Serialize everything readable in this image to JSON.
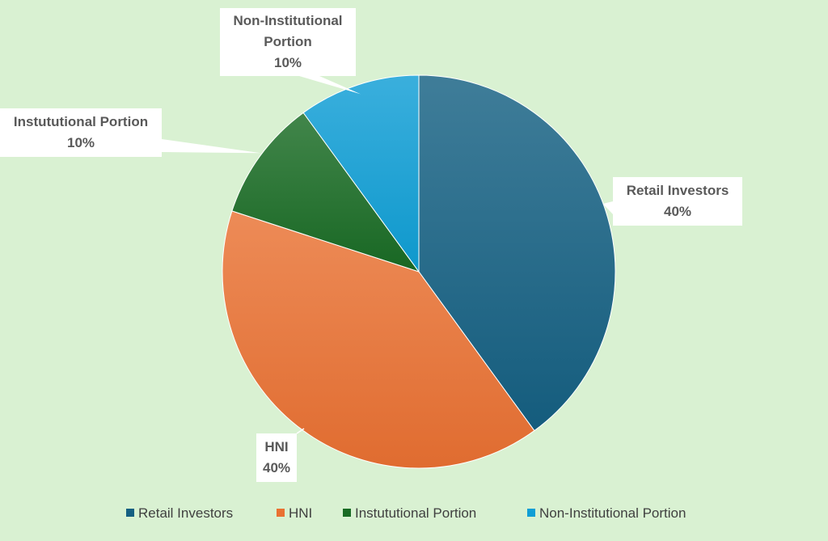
{
  "chart_data": {
    "type": "pie",
    "title": "",
    "categories": [
      "Retail Investors",
      "HNI",
      "Instututional Portion",
      "Non-Institutional Portion"
    ],
    "values": [
      40,
      40,
      10,
      10
    ],
    "data_labels": [
      {
        "lines": [
          "Retail Investors",
          "40%"
        ]
      },
      {
        "lines": [
          "HNI",
          "40%"
        ]
      },
      {
        "lines": [
          "Instututional Portion",
          "10%"
        ]
      },
      {
        "lines": [
          "Non-Institutional",
          "Portion",
          "10%"
        ]
      }
    ],
    "colors": [
      "#156082",
      "#e97132",
      "#196b24",
      "#0f9ed5"
    ],
    "legend": {
      "position": "bottom"
    }
  }
}
